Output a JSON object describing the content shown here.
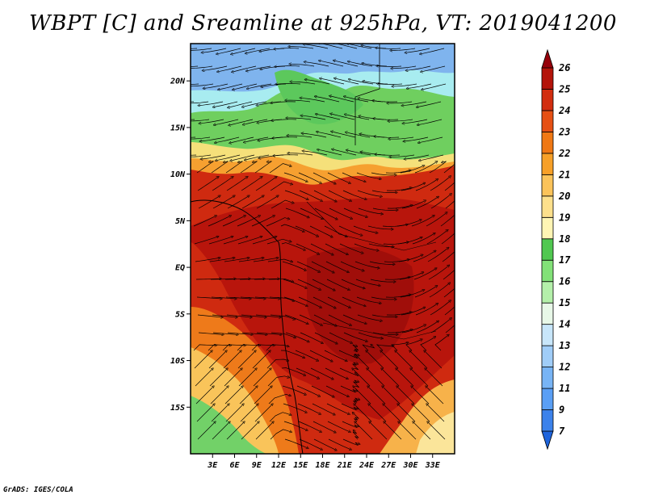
{
  "title": "WBPT [C] and Sreamline at 925hPa, VT: 2019041200",
  "credit": "GrADS: IGES/COLA",
  "map": {
    "lon_range": [
      0,
      36
    ],
    "lat_range": [
      -20,
      24
    ],
    "lat_ticks": [
      {
        "value": 20,
        "label": "20N"
      },
      {
        "value": 15,
        "label": "15N"
      },
      {
        "value": 10,
        "label": "10N"
      },
      {
        "value": 5,
        "label": "5N"
      },
      {
        "value": 0,
        "label": "EQ"
      },
      {
        "value": -5,
        "label": "5S"
      },
      {
        "value": -10,
        "label": "10S"
      },
      {
        "value": -15,
        "label": "15S"
      }
    ],
    "lon_ticks": [
      {
        "value": 3,
        "label": "3E"
      },
      {
        "value": 6,
        "label": "6E"
      },
      {
        "value": 9,
        "label": "9E"
      },
      {
        "value": 12,
        "label": "12E"
      },
      {
        "value": 15,
        "label": "15E"
      },
      {
        "value": 18,
        "label": "18E"
      },
      {
        "value": 21,
        "label": "21E"
      },
      {
        "value": 24,
        "label": "24E"
      },
      {
        "value": 27,
        "label": "27E"
      },
      {
        "value": 30,
        "label": "30E"
      },
      {
        "value": 33,
        "label": "33E"
      }
    ]
  },
  "colorbar": {
    "levels": [
      "7",
      "9",
      "11",
      "12",
      "13",
      "14",
      "15",
      "16",
      "17",
      "18",
      "19",
      "20",
      "21",
      "22",
      "23",
      "24",
      "25",
      "26"
    ],
    "colors": [
      "#1e64dc",
      "#3c82eb",
      "#5a9ff5",
      "#78b4f5",
      "#a0cdf8",
      "#c8e6fa",
      "#e8f8e8",
      "#b4f0aa",
      "#82e178",
      "#50c850",
      "#fff5b4",
      "#fde08c",
      "#fbc35a",
      "#f7a028",
      "#f07814",
      "#e65014",
      "#d22d0f",
      "#b4140a",
      "#96000a"
    ]
  }
}
